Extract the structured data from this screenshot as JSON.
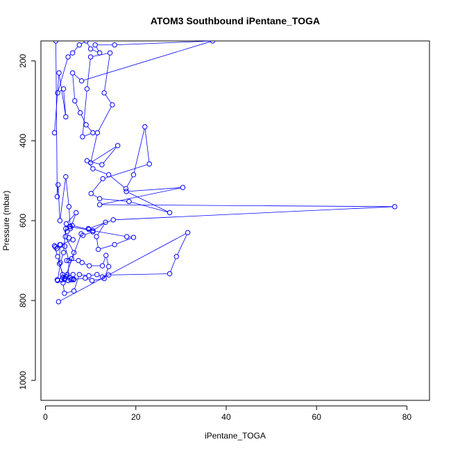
{
  "chart_data": {
    "type": "line",
    "title": "ATOM3 Southbound iPentane_TOGA",
    "xlabel": "iPentane_TOGA",
    "ylabel": "Pressure (mbar)",
    "xlim": [
      -1,
      85
    ],
    "ylim": [
      1050,
      150
    ],
    "y_reversed": true,
    "xticks": [
      0,
      20,
      40,
      60,
      80
    ],
    "yticks": [
      200,
      400,
      600,
      800,
      1000
    ],
    "grid": false,
    "legend": "none",
    "marker": "open-circle",
    "color": "#0000ff",
    "series": [
      {
        "values": [
          [
            2.0,
            380
          ],
          [
            3.0,
            230
          ],
          [
            4.5,
            340
          ],
          [
            4.0,
            270
          ],
          [
            2.7,
            280
          ],
          [
            5.0,
            190
          ],
          [
            6.0,
            180
          ],
          [
            7.5,
            160
          ],
          [
            9.0,
            150
          ],
          [
            10.0,
            170
          ],
          [
            12.0,
            180
          ],
          [
            11.0,
            160
          ],
          [
            15.3,
            160
          ],
          [
            37.0,
            150
          ],
          [
            8.0,
            250
          ],
          [
            6.0,
            230
          ],
          [
            6.5,
            300
          ],
          [
            7.7,
            330
          ],
          [
            9.0,
            360
          ],
          [
            10.5,
            380
          ],
          [
            8.2,
            390
          ],
          [
            9.2,
            270
          ],
          [
            10.0,
            190
          ],
          [
            14.3,
            180
          ],
          [
            13.0,
            280
          ],
          [
            14.8,
            310
          ],
          [
            11.5,
            380
          ],
          [
            10.0,
            455
          ],
          [
            16.0,
            412
          ],
          [
            12.5,
            460
          ],
          [
            9.2,
            450
          ],
          [
            10.5,
            470
          ],
          [
            14.0,
            485
          ],
          [
            17.8,
            520
          ],
          [
            19.5,
            485
          ],
          [
            22.0,
            365
          ],
          [
            23.0,
            458
          ],
          [
            12.7,
            495
          ],
          [
            10.1,
            532
          ],
          [
            12.0,
            545
          ],
          [
            18.5,
            552
          ],
          [
            27.5,
            580
          ],
          [
            17.9,
            527
          ],
          [
            30.4,
            517
          ],
          [
            12.0,
            560
          ],
          [
            77.3,
            565
          ],
          [
            15.0,
            598
          ],
          [
            9.5,
            620
          ],
          [
            10.5,
            625
          ],
          [
            13.3,
            604
          ],
          [
            11.3,
            640
          ],
          [
            11.7,
            672
          ],
          [
            15.3,
            660
          ],
          [
            19.5,
            642
          ],
          [
            18.0,
            640
          ],
          [
            5.4,
            615
          ],
          [
            4.8,
            627
          ],
          [
            5.2,
            643
          ],
          [
            6.1,
            648
          ],
          [
            3.3,
            660
          ],
          [
            2.2,
            666
          ],
          [
            2.5,
            670
          ],
          [
            4.3,
            664
          ],
          [
            5.2,
            700
          ],
          [
            5.0,
            750
          ],
          [
            4.8,
            735
          ],
          [
            3.8,
            742
          ],
          [
            3.6,
            748
          ],
          [
            2.6,
            748
          ],
          [
            3.9,
            756
          ],
          [
            4.2,
            782
          ],
          [
            6.3,
            776
          ],
          [
            7.5,
            735
          ],
          [
            9.6,
            738
          ],
          [
            11.4,
            735
          ],
          [
            12.6,
            741
          ],
          [
            14.0,
            736
          ],
          [
            27.5,
            733
          ],
          [
            29.0,
            690
          ],
          [
            31.5,
            630
          ],
          [
            2.9,
            803
          ]
        ]
      },
      {
        "values": [
          [
            2.3,
            150
          ],
          [
            2.6,
            540
          ],
          [
            2.8,
            510
          ],
          [
            3.2,
            600
          ],
          [
            4.5,
            490
          ],
          [
            5.2,
            565
          ],
          [
            5.5,
            620
          ],
          [
            6.8,
            580
          ],
          [
            4.6,
            608
          ],
          [
            4.4,
            640
          ],
          [
            6.3,
            680
          ],
          [
            5.8,
            695
          ],
          [
            4.7,
            700
          ],
          [
            7.3,
            700
          ],
          [
            8.1,
            705
          ],
          [
            9.7,
            713
          ],
          [
            12.6,
            713
          ],
          [
            13.4,
            687
          ],
          [
            14.0,
            715
          ],
          [
            13.0,
            745
          ],
          [
            10.3,
            750
          ],
          [
            8.8,
            744
          ],
          [
            6.3,
            747
          ],
          [
            5.6,
            748
          ],
          [
            5.9,
            747
          ],
          [
            6.2,
            748
          ],
          [
            4.2,
            747
          ],
          [
            3.1,
            708
          ],
          [
            3.2,
            660
          ],
          [
            2.0,
            663
          ],
          [
            2.7,
            690
          ],
          [
            3.8,
            735
          ],
          [
            4.5,
            740
          ],
          [
            6.1,
            735
          ],
          [
            4.3,
            745
          ],
          [
            7.9,
            633
          ],
          [
            8.3,
            637
          ],
          [
            10.5,
            628
          ],
          [
            9.6,
            622
          ],
          [
            5.9,
            612
          ],
          [
            5.5,
            615
          ],
          [
            4.5,
            620
          ],
          [
            4.0,
            680
          ],
          [
            3.3,
            705
          ],
          [
            2.7,
            750
          ]
        ]
      }
    ]
  }
}
